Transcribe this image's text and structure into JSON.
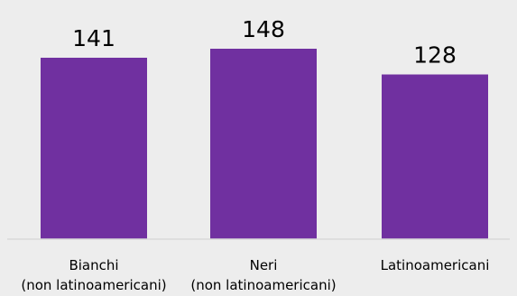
{
  "chart_data": {
    "type": "bar",
    "title": "",
    "xlabel": "",
    "ylabel": "",
    "categories": [
      [
        "Bianchi",
        "(non latinoamericani)"
      ],
      [
        "Neri",
        "(non latinoamericani)"
      ],
      [
        "Latinoamericani"
      ]
    ],
    "values": [
      141,
      148,
      128
    ],
    "ylim": [
      0,
      160
    ],
    "grid": false,
    "legend": "none",
    "bar_color": "#7030a0",
    "axis_color": "#d9d9d9",
    "background_color": "#ededed"
  }
}
